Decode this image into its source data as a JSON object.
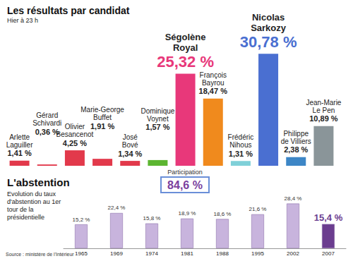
{
  "chart_data": [
    {
      "type": "bar",
      "title": "Les résultats par candidat",
      "subtitle": "Hier à 23 h",
      "categories": [
        "Arlette Laguiller",
        "Gérard Schivardi",
        "Olivier Besancenot",
        "Marie-George Buffet",
        "José Bové",
        "Dominique Voynet",
        "Ségolène Royal",
        "François Bayrou",
        "Frédéric Nihous",
        "Nicolas Sarkozy",
        "Philippe de Villiers",
        "Jean-Marie Le Pen"
      ],
      "values": [
        1.41,
        0.36,
        4.25,
        1.91,
        1.34,
        1.57,
        25.32,
        18.47,
        1.31,
        30.78,
        2.38,
        10.89
      ],
      "value_labels": [
        "1,41 %",
        "0,36 %",
        "4,25 %",
        "1,91 %",
        "1,34 %",
        "1,57 %",
        "25,32 %",
        "18,47 %",
        "1,31 %",
        "30,78 %",
        "2,38 %",
        "10,89 %"
      ],
      "colors": [
        "#e2394b",
        "#e2394b",
        "#e2394b",
        "#e2394b",
        "#e2394b",
        "#5cb531",
        "#e8387a",
        "#f08a1d",
        "#7fd0d8",
        "#4a6fd1",
        "#3d86c6",
        "#8a9599"
      ],
      "ylim": [
        0,
        32
      ],
      "data_labels": true,
      "tick_labels": false,
      "annotations": [
        {
          "text": "Participation",
          "value": 84.6,
          "value_label": "84,6 %"
        }
      ]
    },
    {
      "type": "bar",
      "title": "L'abstention",
      "subtitle": "Evolution du taux d'abstention au 1er tour de la présidentielle",
      "categories": [
        "1965",
        "1969",
        "1974",
        "1981",
        "1988",
        "1995",
        "2002",
        "2007"
      ],
      "values": [
        15.2,
        22.4,
        15.8,
        18.9,
        18.6,
        21.6,
        28.4,
        15.4
      ],
      "value_labels": [
        "15,2 %",
        "22,4 %",
        "15,8 %",
        "18,9 %",
        "18,6 %",
        "21,6 %",
        "28,4 %",
        "15,4 %"
      ],
      "colors": [
        "#c8b4dd",
        "#c8b4dd",
        "#c8b4dd",
        "#c8b4dd",
        "#c8b4dd",
        "#c8b4dd",
        "#c8b4dd",
        "#6b3d8f"
      ],
      "ylim": [
        0,
        30
      ],
      "data_labels": true,
      "tick_labels": "x",
      "source": "Source : ministère de l'Intérieur"
    }
  ]
}
